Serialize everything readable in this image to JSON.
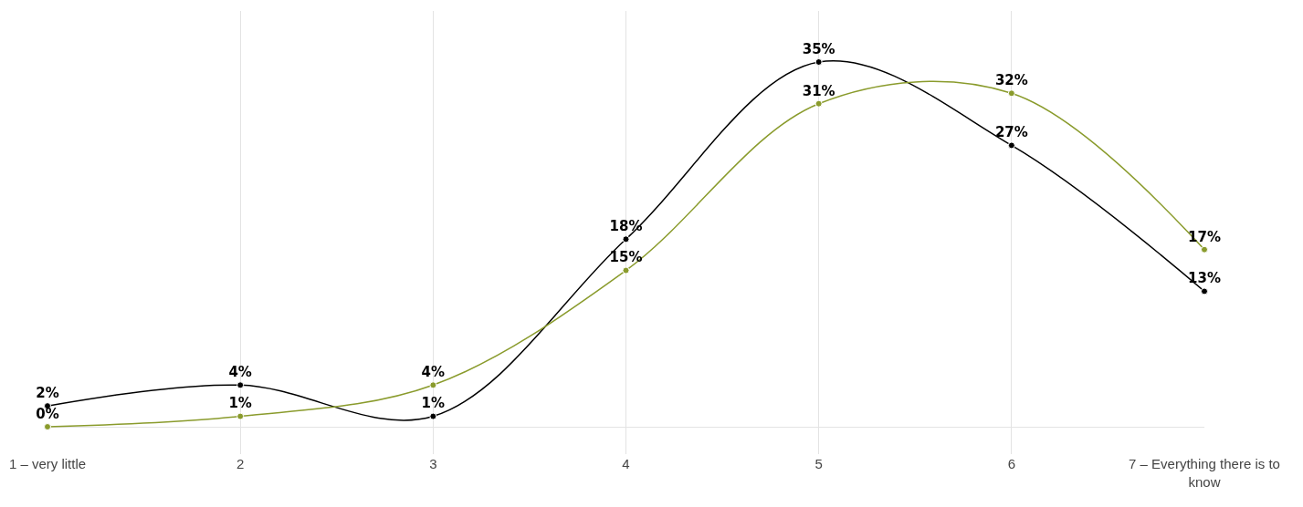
{
  "chart_data": {
    "type": "line",
    "categories": [
      "1 – very little",
      "2",
      "3",
      "4",
      "5",
      "6",
      "7 – Everything there is to know"
    ],
    "series": [
      {
        "color": "#000000",
        "values": [
          2,
          4,
          1,
          18,
          35,
          27,
          13
        ],
        "value_labels": [
          "2%",
          "4%",
          "1%",
          "18%",
          "35%",
          "27%",
          "13%"
        ]
      },
      {
        "color": "#8a9b2c",
        "values": [
          0,
          1,
          4,
          15,
          31,
          32,
          17
        ],
        "value_labels": [
          "0%",
          "1%",
          "4%",
          "15%",
          "31%",
          "32%",
          "17%"
        ]
      }
    ],
    "grid": "x",
    "marker": "circle",
    "line_style": "solid"
  }
}
